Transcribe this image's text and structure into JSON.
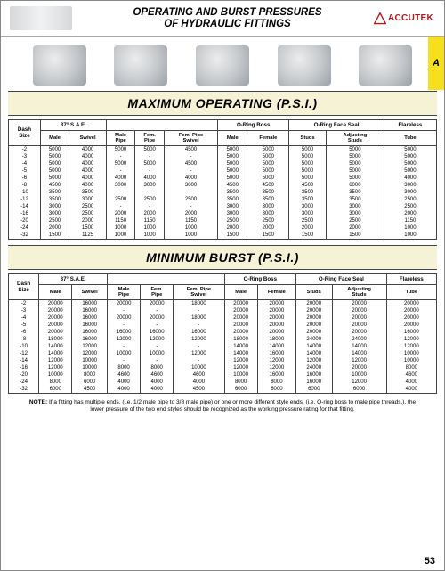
{
  "header": {
    "title_line1": "OPERATING AND BURST PRESSURES",
    "title_line2": "OF HYDRAULIC FITTINGS",
    "brand": "ACCUTEK",
    "brand_color": "#b01b1f",
    "tab_letter": "A",
    "tab_bg": "#f8df1d"
  },
  "page_number": "53",
  "sections": {
    "operating": {
      "heading": "MAXIMUM OPERATING (P.S.I.)"
    },
    "burst": {
      "heading": "MINIMUM BURST (P.S.I.)"
    }
  },
  "columns": {
    "groups": [
      {
        "label": "Dash Size",
        "span": 1,
        "sub": [],
        "single": true
      },
      {
        "label": "37° S.A.E.",
        "span": 2,
        "sub": [
          "Male",
          "Swivel"
        ]
      },
      {
        "label": "",
        "span": 3,
        "sub": [
          "Male Pipe",
          "Fem. Pipe",
          "Fem. Pipe Swivel"
        ]
      },
      {
        "label": "O-Ring Boss",
        "span": 2,
        "sub": [
          "Male",
          "Female"
        ]
      },
      {
        "label": "O-Ring Face Seal",
        "span": 2,
        "sub": [
          "Studs",
          "Adjusting Studs"
        ]
      },
      {
        "label": "Flareless",
        "span": 1,
        "sub": [
          "Tube"
        ]
      }
    ]
  },
  "operating_rows": [
    [
      "-2",
      "5000",
      "4000",
      "5000",
      "5000",
      "4500",
      "5000",
      "5000",
      "5000",
      "5000",
      "5000"
    ],
    [
      "-3",
      "5000",
      "4000",
      "-",
      "-",
      "-",
      "5000",
      "5000",
      "5000",
      "5000",
      "5000"
    ],
    [
      "-4",
      "5000",
      "4000",
      "5000",
      "5000",
      "4500",
      "5000",
      "5000",
      "5000",
      "5000",
      "5000"
    ],
    [
      "-5",
      "5000",
      "4000",
      "-",
      "-",
      "-",
      "5000",
      "5000",
      "5000",
      "5000",
      "5000"
    ],
    [
      "-6",
      "5000",
      "4000",
      "4000",
      "4000",
      "4000",
      "5000",
      "5000",
      "5000",
      "5000",
      "4000"
    ],
    [
      "-8",
      "4500",
      "4000",
      "3000",
      "3000",
      "3000",
      "4500",
      "4500",
      "4500",
      "6000",
      "3000"
    ],
    [
      "-10",
      "3500",
      "3500",
      "-",
      "-",
      "-",
      "3500",
      "3500",
      "3500",
      "3500",
      "3000"
    ],
    [
      "-12",
      "3500",
      "3000",
      "2500",
      "2500",
      "2500",
      "3500",
      "3500",
      "3500",
      "3500",
      "2500"
    ],
    [
      "-14",
      "3000",
      "2500",
      "-",
      "-",
      "-",
      "3000",
      "3000",
      "3000",
      "3000",
      "2500"
    ],
    [
      "-16",
      "3000",
      "2500",
      "2000",
      "2000",
      "2000",
      "3000",
      "3000",
      "3000",
      "3000",
      "2000"
    ],
    [
      "-20",
      "2500",
      "2000",
      "1150",
      "1150",
      "1150",
      "2500",
      "2500",
      "2500",
      "2500",
      "1150"
    ],
    [
      "-24",
      "2000",
      "1500",
      "1000",
      "1000",
      "1000",
      "2000",
      "2000",
      "2000",
      "2000",
      "1000"
    ],
    [
      "-32",
      "1500",
      "1125",
      "1000",
      "1000",
      "1000",
      "1500",
      "1500",
      "1500",
      "1500",
      "1000"
    ]
  ],
  "burst_rows": [
    [
      "-2",
      "20000",
      "16000",
      "20000",
      "20000",
      "18000",
      "20000",
      "20000",
      "20000",
      "20000",
      "20000"
    ],
    [
      "-3",
      "20000",
      "16000",
      "-",
      "-",
      "-",
      "20000",
      "20000",
      "20000",
      "20000",
      "20000"
    ],
    [
      "-4",
      "20000",
      "16000",
      "20000",
      "20000",
      "18000",
      "20000",
      "20000",
      "20000",
      "20000",
      "20000"
    ],
    [
      "-5",
      "20000",
      "16000",
      "-",
      "-",
      "-",
      "20000",
      "20000",
      "20000",
      "20000",
      "20000"
    ],
    [
      "-6",
      "20000",
      "16000",
      "16000",
      "16000",
      "16000",
      "20000",
      "20000",
      "20000",
      "20000",
      "16000"
    ],
    [
      "-8",
      "18000",
      "16000",
      "12000",
      "12000",
      "12000",
      "18000",
      "18000",
      "24000",
      "24000",
      "12000"
    ],
    [
      "-10",
      "14000",
      "12000",
      "-",
      "-",
      "-",
      "14000",
      "14000",
      "14000",
      "14000",
      "12000"
    ],
    [
      "-12",
      "14000",
      "12000",
      "10000",
      "10000",
      "12000",
      "14000",
      "16000",
      "14000",
      "14000",
      "10000"
    ],
    [
      "-14",
      "12000",
      "10000",
      "-",
      "-",
      "-",
      "12000",
      "12000",
      "12000",
      "12000",
      "10000"
    ],
    [
      "-16",
      "12000",
      "10000",
      "8000",
      "8000",
      "10000",
      "12000",
      "12000",
      "24000",
      "20000",
      "8000"
    ],
    [
      "-20",
      "10000",
      "8000",
      "4600",
      "4600",
      "4600",
      "10000",
      "16000",
      "16000",
      "10000",
      "4600"
    ],
    [
      "-24",
      "8000",
      "6000",
      "4000",
      "4000",
      "4000",
      "8000",
      "8000",
      "16000",
      "12000",
      "4000"
    ],
    [
      "-32",
      "6000",
      "4500",
      "4000",
      "4000",
      "4500",
      "6000",
      "6000",
      "6000",
      "6000",
      "4000"
    ]
  ],
  "note": {
    "label": "NOTE:",
    "text": "If a fitting has multiple ends, (i.e. 1/2 male pipe to 3/8 male pipe) or one or more different style ends, (i.e. O-ring boss to male pipe threads.), the lower pressure of the two end styles should be recognized as the working pressure rating for that fitting."
  },
  "styling": {
    "section_bg": "#f6f2d5",
    "border_color": "#444444",
    "body_font": "Arial"
  }
}
